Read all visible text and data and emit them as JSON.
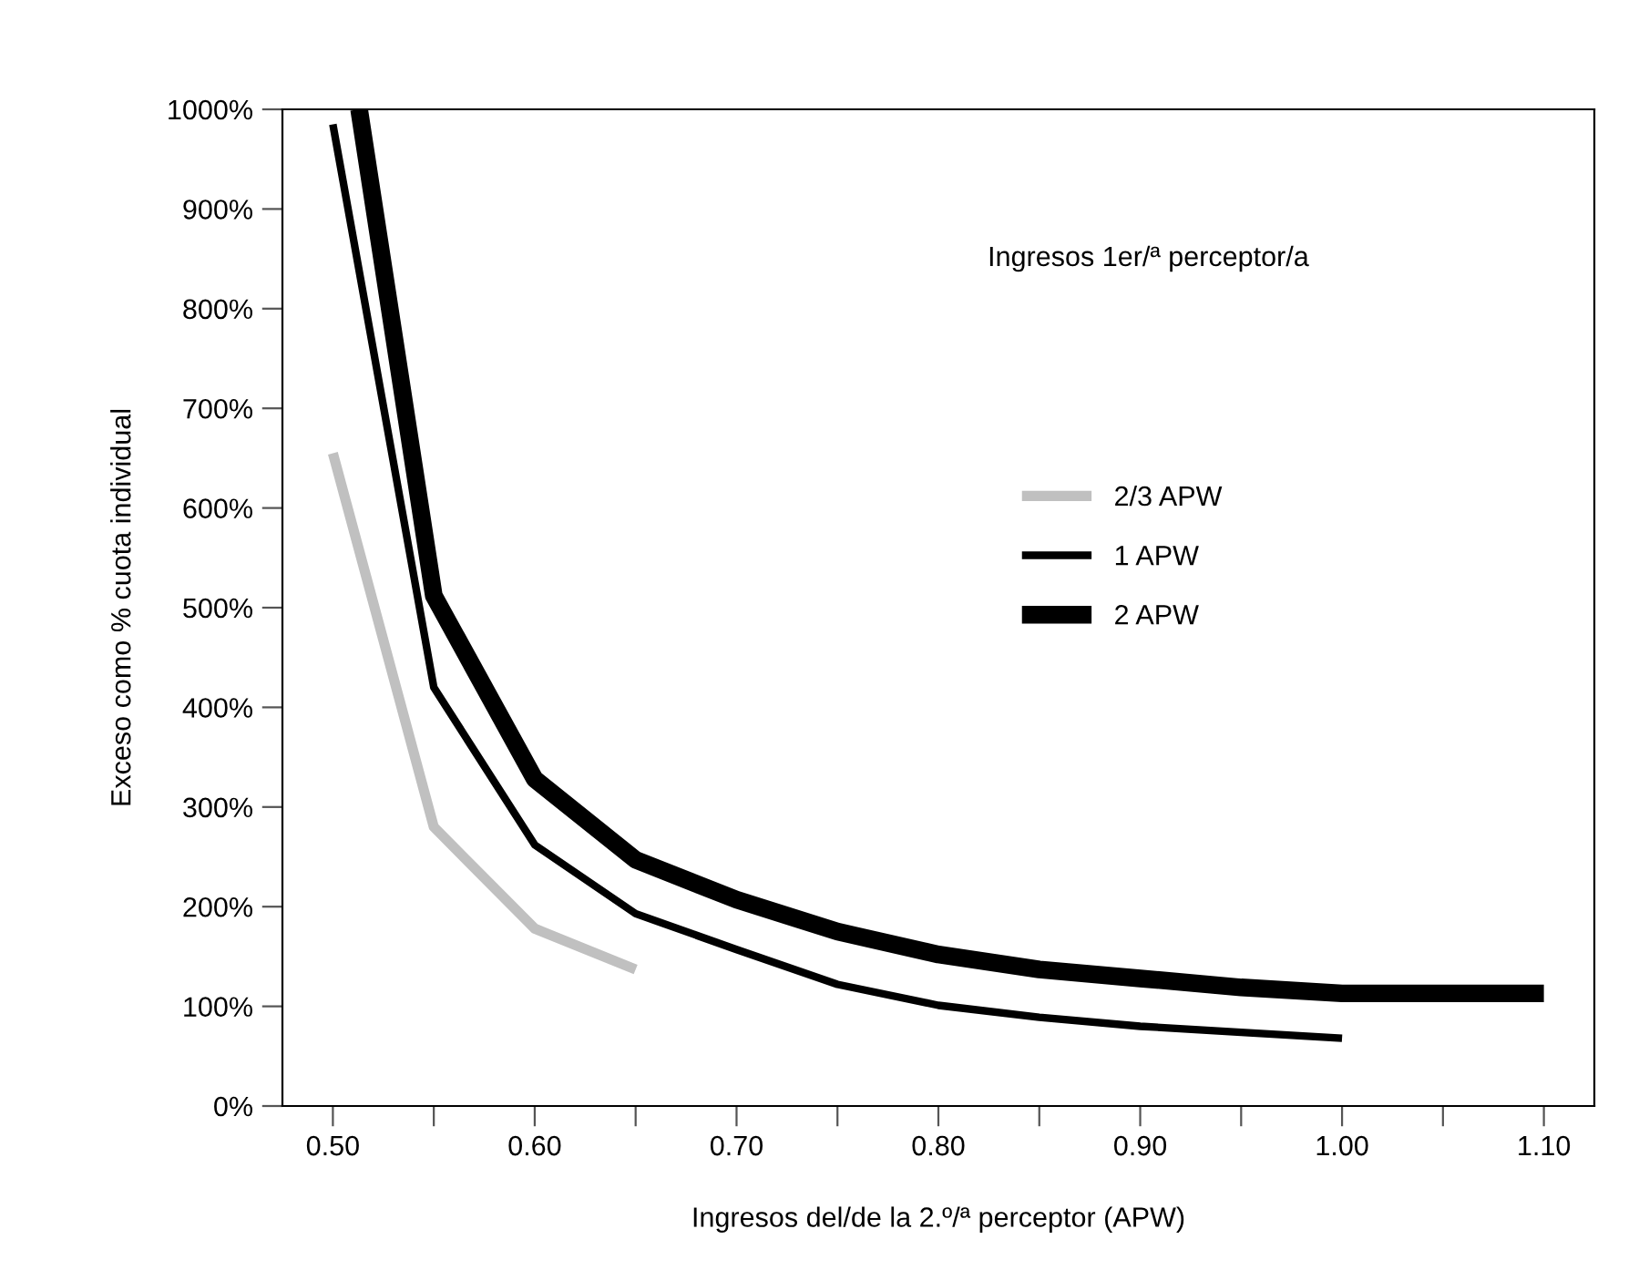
{
  "chart_data": {
    "type": "line",
    "xlabel": "Ingresos del/de la 2.º/ª perceptor (APW)",
    "ylabel": "Exceso como % cuota individual",
    "annotations": [
      "Ingresos 1er/ª perceptor/a"
    ],
    "series": [
      {
        "name": "2/3 APW",
        "color": "#c0c0c0",
        "x": [
          0.5,
          0.55,
          0.6,
          0.65
        ],
        "values": [
          655,
          280,
          178,
          137
        ]
      },
      {
        "name": "1 APW",
        "color": "#000000",
        "x": [
          0.5,
          0.55,
          0.6,
          0.65,
          0.7,
          0.75,
          0.8,
          0.85,
          0.9,
          0.95,
          1.0
        ],
        "values": [
          985,
          420,
          262,
          193,
          157,
          122,
          101,
          89,
          80,
          74,
          68
        ]
      },
      {
        "name": "2 APW",
        "color": "#000000",
        "x": [
          0.513,
          0.55,
          0.6,
          0.65,
          0.7,
          0.75,
          0.8,
          0.85,
          0.9,
          0.95,
          1.0,
          1.1
        ],
        "values": [
          1000,
          512,
          328,
          247,
          207,
          175,
          152,
          137,
          128,
          119,
          113,
          113
        ]
      }
    ],
    "xlim": [
      0.475,
      1.125
    ],
    "xticks": [
      {
        "value": 0.5,
        "label": "0.50"
      },
      {
        "value": 0.55,
        "label": null
      },
      {
        "value": 0.6,
        "label": "0.60"
      },
      {
        "value": 0.65,
        "label": null
      },
      {
        "value": 0.7,
        "label": "0.70"
      },
      {
        "value": 0.75,
        "label": null
      },
      {
        "value": 0.8,
        "label": "0.80"
      },
      {
        "value": 0.85,
        "label": null
      },
      {
        "value": 0.9,
        "label": "0.90"
      },
      {
        "value": 0.95,
        "label": null
      },
      {
        "value": 1.0,
        "label": "1.00"
      },
      {
        "value": 1.05,
        "label": null
      },
      {
        "value": 1.1,
        "label": "1.10"
      }
    ],
    "ylim": [
      0,
      1000
    ],
    "yticks": [
      {
        "value": 0,
        "label": "0%"
      },
      {
        "value": 100,
        "label": "100%"
      },
      {
        "value": 200,
        "label": "200%"
      },
      {
        "value": 300,
        "label": "300%"
      },
      {
        "value": 400,
        "label": "400%"
      },
      {
        "value": 500,
        "label": "500%"
      },
      {
        "value": 600,
        "label": "600%"
      },
      {
        "value": 700,
        "label": "700%"
      },
      {
        "value": 800,
        "label": "800%"
      },
      {
        "value": 900,
        "label": "900%"
      },
      {
        "value": 1000,
        "label": "1000%"
      }
    ],
    "grid": false,
    "legend": "center",
    "marker": "none",
    "line_style": "solid"
  }
}
